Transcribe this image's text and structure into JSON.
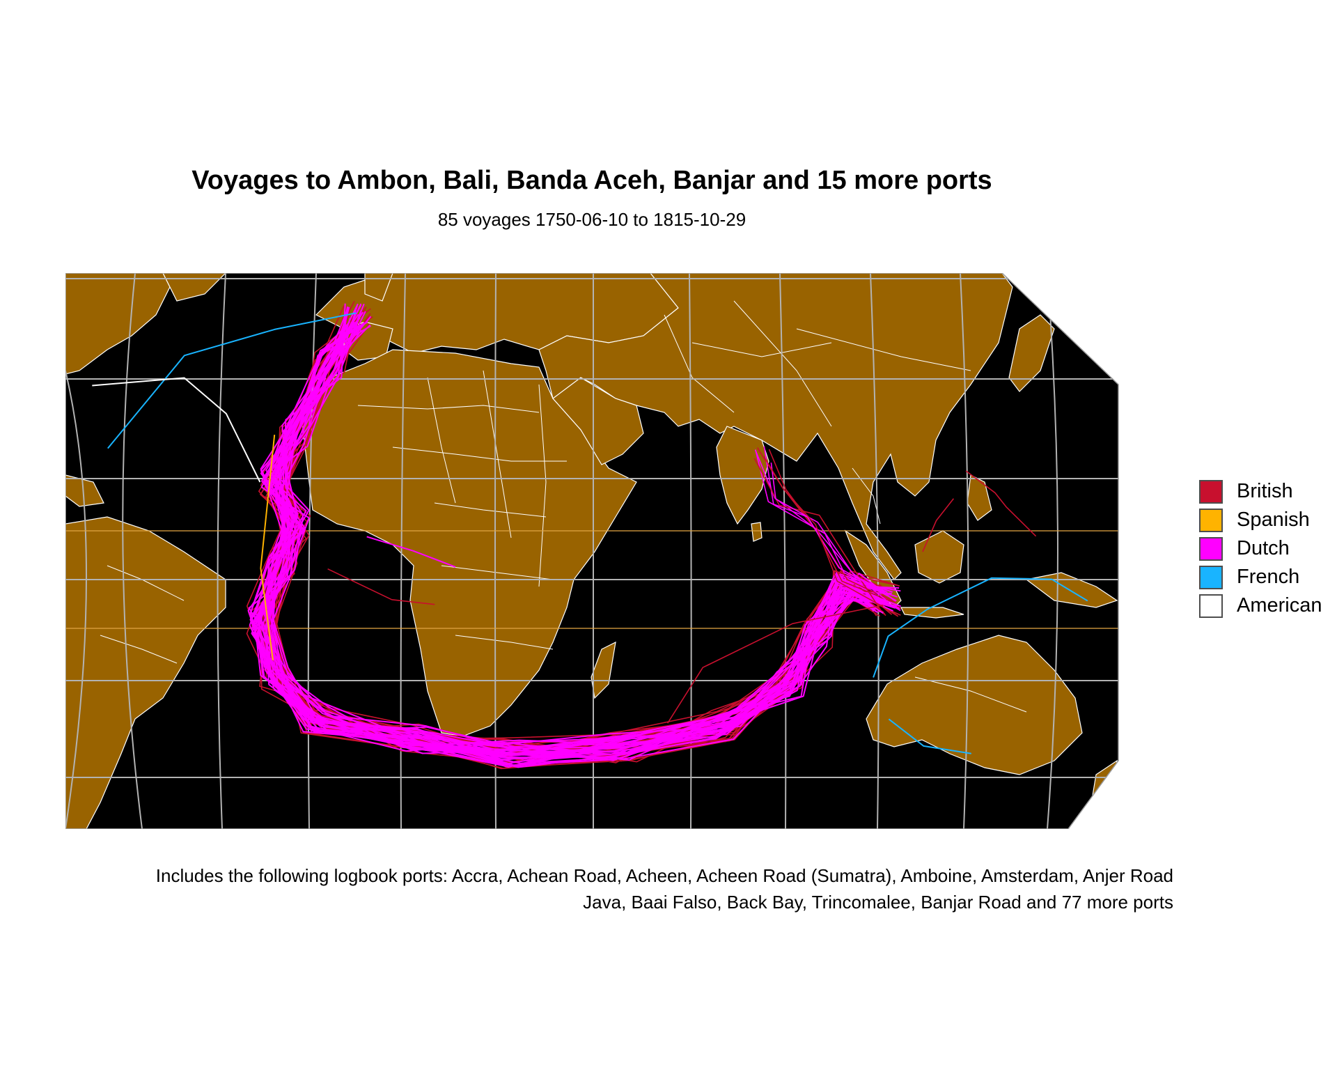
{
  "header": {
    "title": "Voyages to Ambon, Bali, Banda Aceh, Banjar and 15 more ports",
    "subtitle": "85 voyages 1750-06-10 to 1815-10-29"
  },
  "map": {
    "ocean_color": "#000000",
    "land_color": "#996300",
    "border_color": "#ffffff",
    "graticule_color": "#b3b3b3",
    "tropics_color": "#e0a542"
  },
  "legend": {
    "items": [
      {
        "label": "British",
        "color": "#c8102e"
      },
      {
        "label": "Spanish",
        "color": "#ffb300"
      },
      {
        "label": "Dutch",
        "color": "#ff00ff"
      },
      {
        "label": "French",
        "color": "#19b4ff"
      },
      {
        "label": "American",
        "color": "#ffffff"
      }
    ]
  },
  "caption": {
    "line1": "Includes the following logbook ports: Accra, Achean Road, Acheen, Acheen Road (Sumatra), Amboine, Amsterdam, Anjer Road",
    "line2": "Java, Baai Falso, Back Bay, Trincomalee, Banjar Road and 77 more ports"
  }
}
